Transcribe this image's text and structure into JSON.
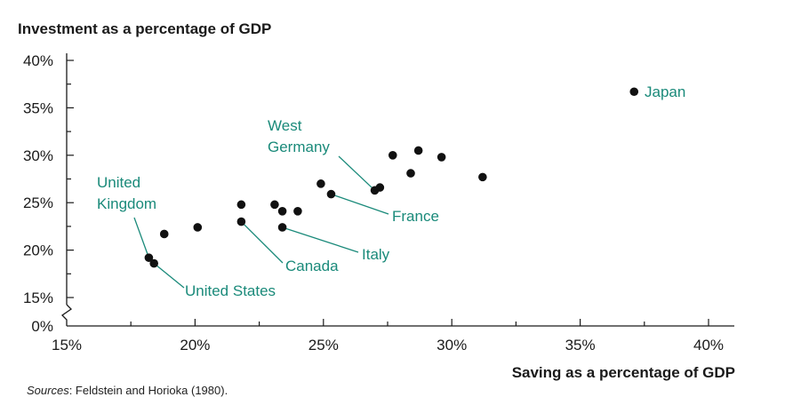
{
  "chart_data": {
    "type": "scatter",
    "ylabel": "Investment as a percentage of GDP",
    "xlabel": "Saving as a percentage of GDP",
    "xlim": [
      15,
      40
    ],
    "ylim": [
      15,
      40
    ],
    "y_zero_label": "0%",
    "x_ticks": [
      "15%",
      "20%",
      "25%",
      "30%",
      "35%",
      "40%"
    ],
    "y_ticks": [
      "15%",
      "20%",
      "25%",
      "30%",
      "35%",
      "40%"
    ],
    "colors": {
      "points": "#111111",
      "annotations": "#1a8a7a",
      "axes": "#1a1a1a"
    },
    "points": [
      {
        "x": 37.1,
        "y": 36.7,
        "label": "Japan"
      },
      {
        "x": 27.7,
        "y": 30.0
      },
      {
        "x": 28.7,
        "y": 30.5
      },
      {
        "x": 29.6,
        "y": 29.8
      },
      {
        "x": 28.4,
        "y": 28.1
      },
      {
        "x": 31.2,
        "y": 27.7
      },
      {
        "x": 24.9,
        "y": 27.0
      },
      {
        "x": 27.2,
        "y": 26.6
      },
      {
        "x": 27.0,
        "y": 26.3,
        "label": "West Germany"
      },
      {
        "x": 25.3,
        "y": 25.9,
        "label": "France"
      },
      {
        "x": 21.8,
        "y": 24.8
      },
      {
        "x": 23.1,
        "y": 24.8
      },
      {
        "x": 23.4,
        "y": 24.1
      },
      {
        "x": 24.0,
        "y": 24.1
      },
      {
        "x": 21.8,
        "y": 23.0,
        "label": "Canada"
      },
      {
        "x": 20.1,
        "y": 22.4
      },
      {
        "x": 23.4,
        "y": 22.4,
        "label": "Italy"
      },
      {
        "x": 18.8,
        "y": 21.7
      },
      {
        "x": 18.2,
        "y": 19.2,
        "label": "United Kingdom"
      },
      {
        "x": 18.4,
        "y": 18.6,
        "label": "United States"
      }
    ],
    "annotations": {
      "japan": "Japan",
      "west_germany_1": "West",
      "west_germany_2": "Germany",
      "france": "France",
      "uk_1": "United",
      "uk_2": "Kingdom",
      "canada": "Canada",
      "italy": "Italy",
      "united_states": "United States"
    }
  },
  "source": {
    "prefix": "Sources",
    "text": ": Feldstein and Horioka (1980)."
  }
}
